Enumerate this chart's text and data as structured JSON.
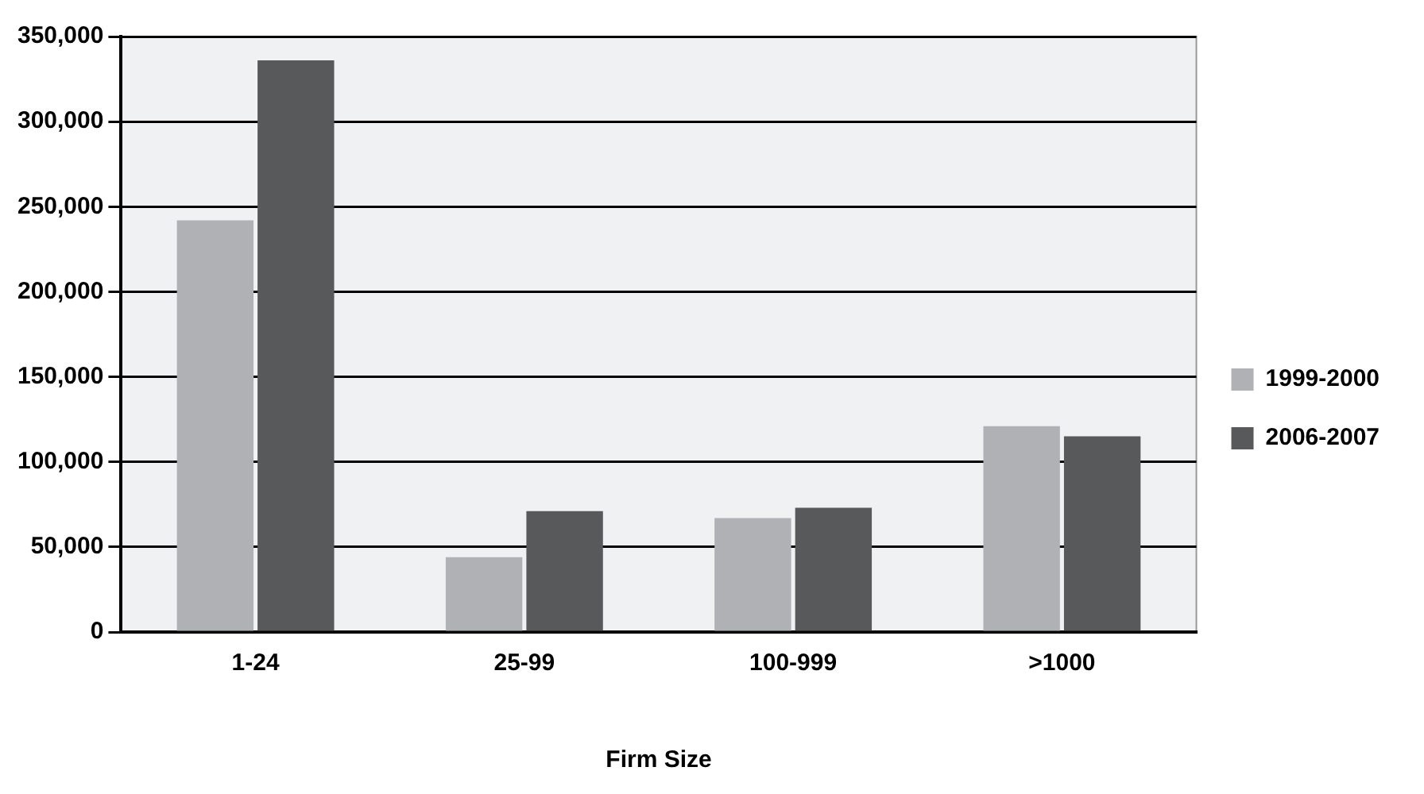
{
  "chart_data": {
    "type": "bar",
    "xlabel": "Firm Size",
    "categories": [
      "1-24",
      "25-99",
      "100-999",
      ">1000"
    ],
    "series": [
      {
        "name": "1999-2000",
        "color": "#b0b1b4",
        "values": [
          242000,
          44000,
          67000,
          121000
        ]
      },
      {
        "name": "2006-2007",
        "color": "#58595b",
        "values": [
          336000,
          71000,
          73000,
          115000
        ]
      }
    ],
    "ylim": [
      0,
      350000
    ],
    "yticks": [
      {
        "value": 0,
        "label": "0"
      },
      {
        "value": 50000,
        "label": "50,000"
      },
      {
        "value": 100000,
        "label": "100,000"
      },
      {
        "value": 150000,
        "label": "150,000"
      },
      {
        "value": 200000,
        "label": "200,000"
      },
      {
        "value": 250000,
        "label": "250,000"
      },
      {
        "value": 300000,
        "label": "300,000"
      },
      {
        "value": 350000,
        "label": "350,000"
      }
    ],
    "grid": "y",
    "legend": "right"
  }
}
